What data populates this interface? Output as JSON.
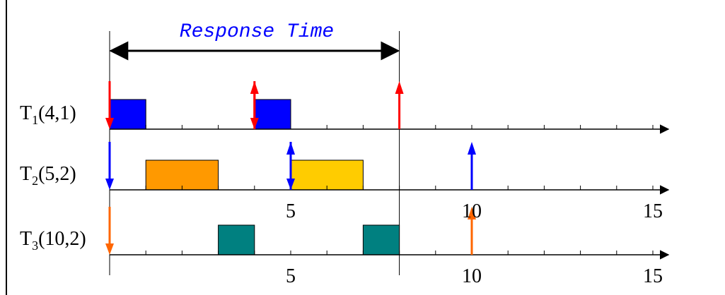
{
  "title": "Response Time",
  "colors": {
    "axis": "#000000",
    "title": "#0000ff",
    "job_t1": "#0000ff",
    "job_t2_first": "#ff9900",
    "job_t2_second": "#ffcc00",
    "job_t3": "#008080",
    "arrow_t1": "#ff0000",
    "arrow_t2": "#0000ff",
    "arrow_t3": "#ff6600"
  },
  "x_range": [
    0,
    15
  ],
  "tasks": [
    {
      "id": "t1",
      "label_main": "T",
      "label_sub": "1",
      "label_rest": "(4,1)",
      "blocks": [
        {
          "start": 0,
          "end": 1,
          "color": "#0000ff"
        },
        {
          "start": 4,
          "end": 5,
          "color": "#0000ff"
        }
      ],
      "releases": [
        0,
        4
      ],
      "deadlines": [
        4,
        8
      ],
      "arrow_color": "#ff0000",
      "tick_labels": []
    },
    {
      "id": "t2",
      "label_main": "T",
      "label_sub": "2",
      "label_rest": "(5,2)",
      "blocks": [
        {
          "start": 1,
          "end": 3,
          "color": "#ff9900"
        },
        {
          "start": 5,
          "end": 7,
          "color": "#ffcc00"
        }
      ],
      "releases": [
        0,
        5
      ],
      "deadlines": [
        5,
        10
      ],
      "arrow_color": "#0000ff",
      "tick_labels": [
        "5",
        "10",
        "15"
      ]
    },
    {
      "id": "t3",
      "label_main": "T",
      "label_sub": "3",
      "label_rest": "(10,2)",
      "blocks": [
        {
          "start": 3,
          "end": 4,
          "color": "#008080"
        },
        {
          "start": 7,
          "end": 8,
          "color": "#008080"
        }
      ],
      "releases": [
        0
      ],
      "deadlines": [
        10
      ],
      "arrow_color": "#ff6600",
      "tick_labels": [
        "5",
        "10",
        "15"
      ]
    }
  ],
  "response_time": {
    "start": 0,
    "end": 8
  }
}
